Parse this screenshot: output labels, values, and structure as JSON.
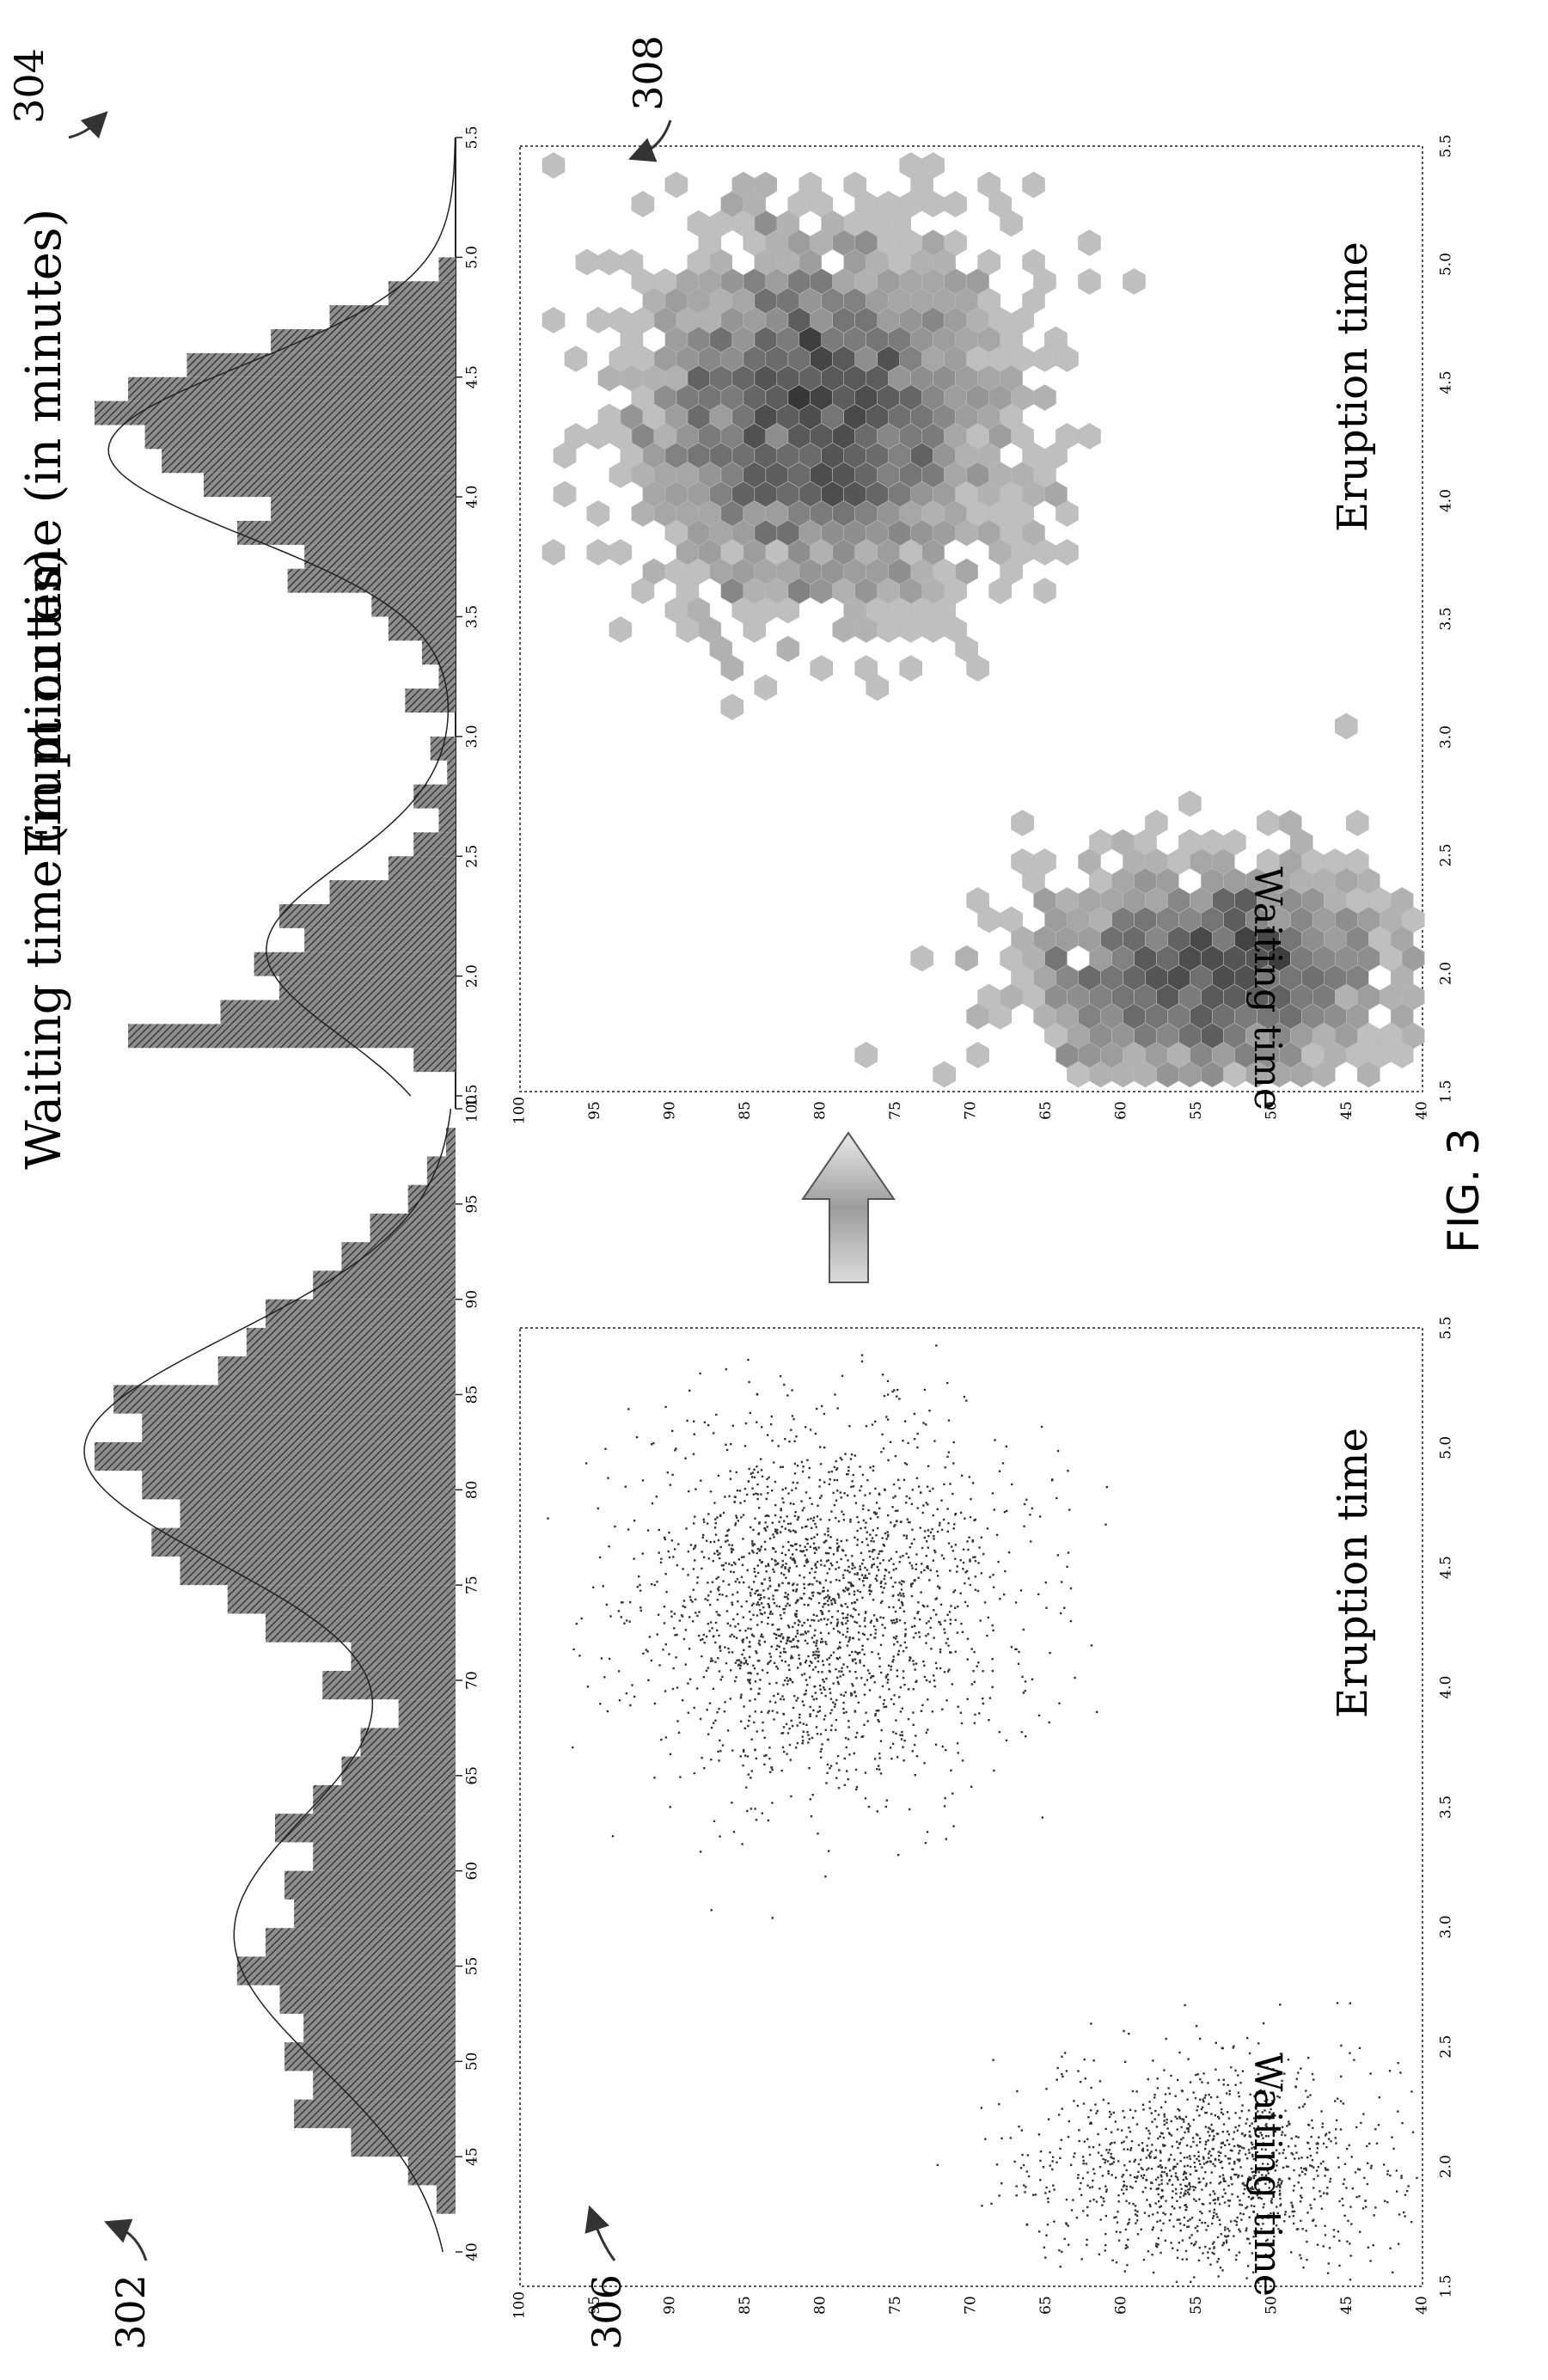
{
  "figure_label": "FIG. 3",
  "refs": {
    "hist_waiting": "302",
    "hist_eruption": "304",
    "scatter": "306",
    "hexbin": "308"
  },
  "chart_data": [
    {
      "id": "hist_waiting",
      "type": "bar",
      "title": "Waiting time (in minutes)",
      "x_ticks": [
        "40",
        "45",
        "50",
        "55",
        "60",
        "65",
        "70",
        "75",
        "80",
        "85",
        "90",
        "95",
        "100"
      ],
      "xlim": [
        40,
        100
      ],
      "bin_start": 42,
      "bin_width": 1.5,
      "counts": [
        4,
        10,
        22,
        34,
        30,
        36,
        32,
        37,
        46,
        40,
        34,
        36,
        30,
        38,
        30,
        24,
        20,
        12,
        28,
        22,
        40,
        48,
        58,
        64,
        58,
        66,
        76,
        66,
        72,
        50,
        44,
        40,
        30,
        24,
        18,
        10,
        6,
        2
      ],
      "density_curve": true
    },
    {
      "id": "hist_eruption",
      "type": "bar",
      "title": "Eruption time (in minutes)",
      "x_ticks": [
        "1.5",
        "2.0",
        "2.5",
        "3.0",
        "3.5",
        "4.0",
        "4.5",
        "5.0",
        "5.5"
      ],
      "xlim": [
        1.5,
        5.5
      ],
      "bin_start": 1.6,
      "bin_width": 0.1,
      "counts": [
        10,
        78,
        56,
        42,
        48,
        36,
        42,
        30,
        16,
        10,
        4,
        10,
        2,
        6,
        0,
        12,
        4,
        8,
        16,
        20,
        40,
        36,
        52,
        44,
        60,
        70,
        74,
        86,
        78,
        64,
        44,
        30,
        16,
        4
      ],
      "density_curve": true
    },
    {
      "id": "scatter",
      "type": "scatter",
      "xlabel": "Eruption time",
      "ylabel": "Waiting time",
      "x_ticks": [
        "1.5",
        "2.0",
        "2.5",
        "3.0",
        "3.5",
        "4.0",
        "4.5",
        "5.0",
        "5.5"
      ],
      "y_ticks": [
        "40",
        "45",
        "50",
        "55",
        "60",
        "65",
        "70",
        "75",
        "80",
        "85",
        "90",
        "95",
        "100"
      ],
      "xlim": [
        1.5,
        5.5
      ],
      "ylim": [
        40,
        100
      ],
      "clusters": [
        {
          "cx": 2.0,
          "cy": 54,
          "sx": 0.22,
          "sy": 6,
          "n": 1300
        },
        {
          "cx": 4.35,
          "cy": 80,
          "sx": 0.38,
          "sy": 6,
          "n": 2100
        }
      ]
    },
    {
      "id": "hexbin",
      "type": "heatmap",
      "xlabel": "Eruption time",
      "ylabel": "Waiting time",
      "x_ticks": [
        "1.5",
        "2.0",
        "2.5",
        "3.0",
        "3.5",
        "4.0",
        "4.5",
        "5.0",
        "5.5"
      ],
      "y_ticks": [
        "40",
        "45",
        "50",
        "55",
        "60",
        "65",
        "70",
        "75",
        "80",
        "85",
        "90",
        "95",
        "100"
      ],
      "xlim": [
        1.5,
        5.5
      ],
      "ylim": [
        40,
        100
      ],
      "clusters": [
        {
          "cx": 2.0,
          "cy": 54,
          "sx": 0.22,
          "sy": 6,
          "n": 1300
        },
        {
          "cx": 4.35,
          "cy": 80,
          "sx": 0.38,
          "sy": 6,
          "n": 2100
        }
      ]
    }
  ]
}
